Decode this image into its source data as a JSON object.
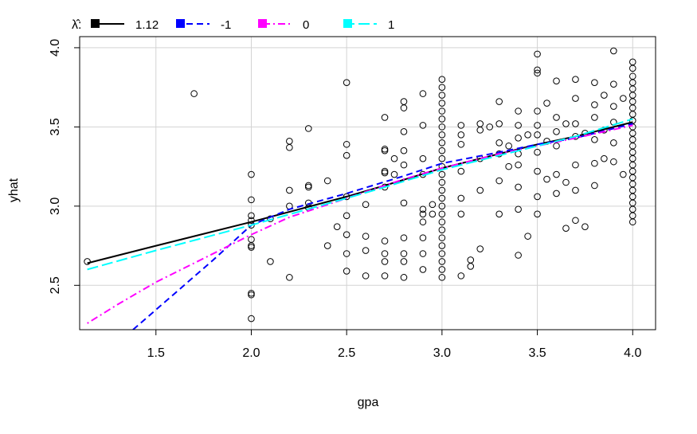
{
  "chart_data": {
    "type": "scatter",
    "title": "",
    "xlabel": "gpa",
    "ylabel": "yhat",
    "xlim": [
      1.1,
      4.12
    ],
    "ylim": [
      2.22,
      4.07
    ],
    "grid": true,
    "x_ticks": [
      "1.5",
      "2.0",
      "2.5",
      "3.0",
      "3.5",
      "4.0"
    ],
    "y_ticks": [
      "2.5",
      "3.0",
      "3.5",
      "4.0"
    ],
    "legend": {
      "placement": "top-left",
      "symbol": "λ̂:",
      "entries": [
        {
          "label": "1.12",
          "color": "#000000",
          "dash": "solid"
        },
        {
          "label": "-1",
          "color": "#0000ff",
          "dash": "dashed"
        },
        {
          "label": "0",
          "color": "#ff00ff",
          "dash": "dotdash"
        },
        {
          "label": "1",
          "color": "#00ffff",
          "dash": "longdash"
        }
      ]
    },
    "points": [
      [
        1.14,
        2.65
      ],
      [
        1.7,
        3.71
      ],
      [
        2.0,
        3.2
      ],
      [
        2.0,
        3.04
      ],
      [
        2.0,
        2.94
      ],
      [
        2.0,
        2.91
      ],
      [
        2.0,
        2.88
      ],
      [
        2.0,
        2.79
      ],
      [
        2.0,
        2.75
      ],
      [
        2.0,
        2.74
      ],
      [
        2.0,
        2.45
      ],
      [
        2.0,
        2.44
      ],
      [
        2.0,
        2.29
      ],
      [
        2.1,
        2.92
      ],
      [
        2.1,
        2.65
      ],
      [
        2.2,
        3.41
      ],
      [
        2.2,
        3.37
      ],
      [
        2.2,
        3.1
      ],
      [
        2.2,
        3.0
      ],
      [
        2.2,
        2.55
      ],
      [
        2.3,
        3.49
      ],
      [
        2.3,
        3.13
      ],
      [
        2.3,
        3.12
      ],
      [
        2.3,
        3.02
      ],
      [
        2.3,
        2.99
      ],
      [
        2.4,
        3.16
      ],
      [
        2.4,
        2.75
      ],
      [
        2.45,
        2.87
      ],
      [
        2.5,
        3.78
      ],
      [
        2.5,
        3.39
      ],
      [
        2.5,
        3.32
      ],
      [
        2.5,
        3.06
      ],
      [
        2.5,
        2.94
      ],
      [
        2.5,
        2.82
      ],
      [
        2.5,
        2.7
      ],
      [
        2.5,
        2.59
      ],
      [
        2.6,
        3.01
      ],
      [
        2.6,
        2.81
      ],
      [
        2.6,
        2.72
      ],
      [
        2.6,
        2.56
      ],
      [
        2.7,
        3.56
      ],
      [
        2.7,
        3.36
      ],
      [
        2.7,
        3.35
      ],
      [
        2.7,
        3.22
      ],
      [
        2.7,
        3.21
      ],
      [
        2.7,
        3.12
      ],
      [
        2.7,
        2.78
      ],
      [
        2.7,
        2.7
      ],
      [
        2.7,
        2.65
      ],
      [
        2.7,
        2.56
      ],
      [
        2.75,
        3.3
      ],
      [
        2.75,
        3.2
      ],
      [
        2.8,
        3.66
      ],
      [
        2.8,
        3.62
      ],
      [
        2.8,
        3.47
      ],
      [
        2.8,
        3.35
      ],
      [
        2.8,
        3.26
      ],
      [
        2.8,
        3.02
      ],
      [
        2.8,
        2.8
      ],
      [
        2.8,
        2.7
      ],
      [
        2.8,
        2.65
      ],
      [
        2.8,
        2.55
      ],
      [
        2.9,
        3.71
      ],
      [
        2.9,
        3.51
      ],
      [
        2.9,
        3.3
      ],
      [
        2.9,
        3.2
      ],
      [
        2.9,
        2.98
      ],
      [
        2.9,
        2.95
      ],
      [
        2.9,
        2.9
      ],
      [
        2.9,
        2.8
      ],
      [
        2.9,
        2.7
      ],
      [
        2.9,
        2.6
      ],
      [
        2.95,
        3.01
      ],
      [
        2.95,
        2.95
      ],
      [
        3.0,
        3.8
      ],
      [
        3.0,
        3.75
      ],
      [
        3.0,
        3.7
      ],
      [
        3.0,
        3.65
      ],
      [
        3.0,
        3.6
      ],
      [
        3.0,
        3.55
      ],
      [
        3.0,
        3.5
      ],
      [
        3.0,
        3.45
      ],
      [
        3.0,
        3.4
      ],
      [
        3.0,
        3.35
      ],
      [
        3.0,
        3.3
      ],
      [
        3.0,
        3.25
      ],
      [
        3.0,
        3.2
      ],
      [
        3.0,
        3.15
      ],
      [
        3.0,
        3.1
      ],
      [
        3.0,
        3.05
      ],
      [
        3.0,
        3.0
      ],
      [
        3.0,
        2.95
      ],
      [
        3.0,
        2.9
      ],
      [
        3.0,
        2.85
      ],
      [
        3.0,
        2.8
      ],
      [
        3.0,
        2.75
      ],
      [
        3.0,
        2.7
      ],
      [
        3.0,
        2.65
      ],
      [
        3.0,
        2.6
      ],
      [
        3.0,
        2.55
      ],
      [
        3.1,
        3.51
      ],
      [
        3.1,
        3.45
      ],
      [
        3.1,
        3.39
      ],
      [
        3.1,
        3.22
      ],
      [
        3.1,
        3.05
      ],
      [
        3.1,
        2.95
      ],
      [
        3.1,
        2.56
      ],
      [
        3.15,
        2.66
      ],
      [
        3.15,
        2.62
      ],
      [
        3.2,
        3.52
      ],
      [
        3.2,
        3.48
      ],
      [
        3.2,
        3.3
      ],
      [
        3.2,
        2.73
      ],
      [
        3.2,
        3.1
      ],
      [
        3.25,
        3.5
      ],
      [
        3.3,
        3.66
      ],
      [
        3.3,
        3.52
      ],
      [
        3.3,
        3.4
      ],
      [
        3.3,
        3.33
      ],
      [
        3.3,
        3.16
      ],
      [
        3.3,
        2.95
      ],
      [
        3.35,
        3.38
      ],
      [
        3.35,
        3.25
      ],
      [
        3.4,
        3.6
      ],
      [
        3.4,
        3.51
      ],
      [
        3.4,
        3.43
      ],
      [
        3.4,
        3.33
      ],
      [
        3.4,
        3.26
      ],
      [
        3.4,
        3.12
      ],
      [
        3.4,
        2.98
      ],
      [
        3.4,
        2.69
      ],
      [
        3.45,
        3.45
      ],
      [
        3.45,
        2.81
      ],
      [
        3.5,
        3.96
      ],
      [
        3.5,
        3.86
      ],
      [
        3.5,
        3.84
      ],
      [
        3.5,
        3.6
      ],
      [
        3.5,
        3.51
      ],
      [
        3.5,
        3.45
      ],
      [
        3.5,
        3.34
      ],
      [
        3.5,
        3.22
      ],
      [
        3.5,
        3.06
      ],
      [
        3.5,
        2.95
      ],
      [
        3.55,
        3.65
      ],
      [
        3.55,
        3.41
      ],
      [
        3.55,
        3.17
      ],
      [
        3.6,
        3.79
      ],
      [
        3.6,
        3.56
      ],
      [
        3.6,
        3.47
      ],
      [
        3.6,
        3.38
      ],
      [
        3.6,
        3.2
      ],
      [
        3.6,
        3.08
      ],
      [
        3.65,
        3.52
      ],
      [
        3.65,
        3.15
      ],
      [
        3.65,
        2.86
      ],
      [
        3.7,
        3.8
      ],
      [
        3.7,
        3.68
      ],
      [
        3.7,
        3.52
      ],
      [
        3.7,
        3.44
      ],
      [
        3.7,
        3.26
      ],
      [
        3.7,
        3.1
      ],
      [
        3.7,
        2.91
      ],
      [
        3.75,
        3.46
      ],
      [
        3.75,
        2.87
      ],
      [
        3.8,
        3.78
      ],
      [
        3.8,
        3.64
      ],
      [
        3.8,
        3.56
      ],
      [
        3.8,
        3.42
      ],
      [
        3.8,
        3.27
      ],
      [
        3.8,
        3.13
      ],
      [
        3.85,
        3.7
      ],
      [
        3.85,
        3.48
      ],
      [
        3.85,
        3.3
      ],
      [
        3.9,
        3.98
      ],
      [
        3.9,
        3.77
      ],
      [
        3.9,
        3.63
      ],
      [
        3.9,
        3.53
      ],
      [
        3.9,
        3.4
      ],
      [
        3.9,
        3.28
      ],
      [
        3.95,
        3.68
      ],
      [
        3.95,
        3.2
      ],
      [
        4.0,
        3.91
      ],
      [
        4.0,
        3.87
      ],
      [
        4.0,
        3.82
      ],
      [
        4.0,
        3.78
      ],
      [
        4.0,
        3.74
      ],
      [
        4.0,
        3.7
      ],
      [
        4.0,
        3.66
      ],
      [
        4.0,
        3.62
      ],
      [
        4.0,
        3.58
      ],
      [
        4.0,
        3.54
      ],
      [
        4.0,
        3.5
      ],
      [
        4.0,
        3.46
      ],
      [
        4.0,
        3.42
      ],
      [
        4.0,
        3.38
      ],
      [
        4.0,
        3.34
      ],
      [
        4.0,
        3.3
      ],
      [
        4.0,
        3.26
      ],
      [
        4.0,
        3.22
      ],
      [
        4.0,
        3.18
      ],
      [
        4.0,
        3.14
      ],
      [
        4.0,
        3.1
      ],
      [
        4.0,
        3.06
      ],
      [
        4.0,
        3.02
      ],
      [
        4.0,
        2.98
      ],
      [
        4.0,
        2.94
      ],
      [
        4.0,
        2.9
      ]
    ],
    "series": [
      {
        "name": "1.12",
        "color": "#000000",
        "dash": "solid",
        "x": [
          1.14,
          1.5,
          2.0,
          2.5,
          2.7,
          3.0,
          3.3,
          3.5,
          3.7,
          4.0
        ],
        "y": [
          2.64,
          2.75,
          2.9,
          3.06,
          3.13,
          3.24,
          3.33,
          3.39,
          3.44,
          3.53
        ]
      },
      {
        "name": "-1",
        "color": "#0000ff",
        "dash": "dashed",
        "x": [
          1.38,
          1.6,
          1.8,
          2.0,
          2.2,
          2.5,
          2.8,
          3.0,
          3.3,
          3.5,
          3.7,
          4.0
        ],
        "y": [
          2.22,
          2.45,
          2.66,
          2.88,
          2.98,
          3.08,
          3.19,
          3.27,
          3.34,
          3.39,
          3.43,
          3.52
        ]
      },
      {
        "name": "0",
        "color": "#ff00ff",
        "dash": "dotdash",
        "x": [
          1.14,
          1.3,
          1.5,
          1.7,
          2.0,
          2.2,
          2.5,
          2.8,
          3.0,
          3.3,
          3.5,
          3.7,
          4.0
        ],
        "y": [
          2.26,
          2.38,
          2.52,
          2.64,
          2.82,
          2.93,
          3.05,
          3.17,
          3.24,
          3.33,
          3.38,
          3.43,
          3.51
        ]
      },
      {
        "name": "1",
        "color": "#00ffff",
        "dash": "longdash",
        "x": [
          1.14,
          1.5,
          2.0,
          2.5,
          2.7,
          3.0,
          3.3,
          3.5,
          3.7,
          4.0
        ],
        "y": [
          2.6,
          2.72,
          2.88,
          3.05,
          3.12,
          3.23,
          3.32,
          3.38,
          3.44,
          3.55
        ]
      }
    ]
  }
}
